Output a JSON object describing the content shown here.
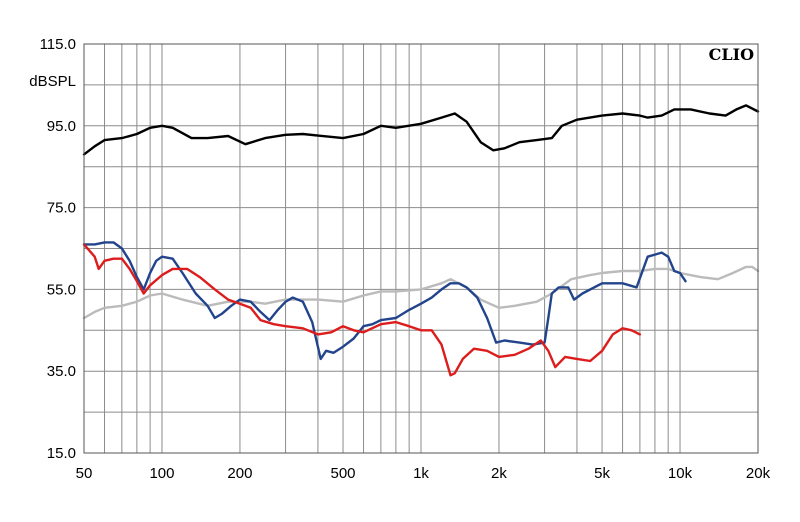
{
  "chart_data": {
    "type": "line",
    "title": "",
    "brand": "CLIO",
    "xlabel": "",
    "ylabel": "dBSPL",
    "x_scale": "log",
    "xlim": [
      50,
      20000
    ],
    "ylim": [
      15,
      115
    ],
    "grid": true,
    "x_ticks": [
      {
        "value": 50,
        "label": "50"
      },
      {
        "value": 100,
        "label": "100"
      },
      {
        "value": 200,
        "label": "200"
      },
      {
        "value": 500,
        "label": "500"
      },
      {
        "value": 1000,
        "label": "1k"
      },
      {
        "value": 2000,
        "label": "2k"
      },
      {
        "value": 5000,
        "label": "5k"
      },
      {
        "value": 10000,
        "label": "10k"
      },
      {
        "value": 20000,
        "label": "20k"
      }
    ],
    "y_ticks": [
      {
        "value": 115,
        "label": "115.0"
      },
      {
        "value": 95,
        "label": "95.0"
      },
      {
        "value": 75,
        "label": "75.0"
      },
      {
        "value": 55,
        "label": "55.0"
      },
      {
        "value": 35,
        "label": "35.0"
      },
      {
        "value": 15,
        "label": "15.0"
      }
    ],
    "series": [
      {
        "color": "#000000",
        "points": [
          [
            50,
            88
          ],
          [
            55,
            90
          ],
          [
            60,
            91.5
          ],
          [
            70,
            92
          ],
          [
            80,
            93
          ],
          [
            90,
            94.5
          ],
          [
            100,
            95
          ],
          [
            110,
            94.5
          ],
          [
            130,
            92
          ],
          [
            150,
            92
          ],
          [
            180,
            92.5
          ],
          [
            210,
            90.5
          ],
          [
            250,
            92
          ],
          [
            300,
            92.8
          ],
          [
            350,
            93
          ],
          [
            400,
            92.6
          ],
          [
            500,
            92
          ],
          [
            600,
            93
          ],
          [
            700,
            95
          ],
          [
            800,
            94.5
          ],
          [
            1000,
            95.5
          ],
          [
            1200,
            97
          ],
          [
            1350,
            98
          ],
          [
            1500,
            96
          ],
          [
            1700,
            91
          ],
          [
            1900,
            89
          ],
          [
            2100,
            89.5
          ],
          [
            2400,
            91
          ],
          [
            2800,
            91.5
          ],
          [
            3200,
            92
          ],
          [
            3500,
            95
          ],
          [
            4000,
            96.5
          ],
          [
            5000,
            97.5
          ],
          [
            6000,
            98
          ],
          [
            7000,
            97.5
          ],
          [
            7500,
            97
          ],
          [
            8500,
            97.5
          ],
          [
            9500,
            99
          ],
          [
            11000,
            99
          ],
          [
            13000,
            98
          ],
          [
            15000,
            97.5
          ],
          [
            16500,
            99
          ],
          [
            18000,
            100
          ],
          [
            20000,
            98.5
          ]
        ]
      },
      {
        "color": "#bbbbbb",
        "points": [
          [
            50,
            48
          ],
          [
            55,
            49.5
          ],
          [
            60,
            50.5
          ],
          [
            70,
            51
          ],
          [
            80,
            52
          ],
          [
            90,
            53.5
          ],
          [
            100,
            54
          ],
          [
            120,
            52.5
          ],
          [
            150,
            51
          ],
          [
            180,
            52
          ],
          [
            220,
            52
          ],
          [
            250,
            51.5
          ],
          [
            300,
            52.5
          ],
          [
            400,
            52.5
          ],
          [
            500,
            52
          ],
          [
            600,
            53.5
          ],
          [
            700,
            54.5
          ],
          [
            800,
            54.5
          ],
          [
            1000,
            55
          ],
          [
            1200,
            56.5
          ],
          [
            1300,
            57.5
          ],
          [
            1500,
            55.5
          ],
          [
            1700,
            52.5
          ],
          [
            2000,
            50.5
          ],
          [
            2300,
            51
          ],
          [
            2800,
            52
          ],
          [
            3200,
            54
          ],
          [
            3800,
            57.5
          ],
          [
            4500,
            58.5
          ],
          [
            5000,
            59
          ],
          [
            6000,
            59.5
          ],
          [
            7000,
            59.5
          ],
          [
            8000,
            60
          ],
          [
            9000,
            60
          ],
          [
            10000,
            59
          ],
          [
            12000,
            58
          ],
          [
            14000,
            57.5
          ],
          [
            16000,
            59
          ],
          [
            18000,
            60.5
          ],
          [
            19000,
            60.5
          ],
          [
            20000,
            59.5
          ]
        ]
      },
      {
        "color": "#22448c",
        "points": [
          [
            50,
            66
          ],
          [
            55,
            66
          ],
          [
            60,
            66.5
          ],
          [
            65,
            66.5
          ],
          [
            70,
            65
          ],
          [
            75,
            62
          ],
          [
            80,
            58
          ],
          [
            85,
            55
          ],
          [
            90,
            59
          ],
          [
            95,
            62
          ],
          [
            100,
            63
          ],
          [
            110,
            62.5
          ],
          [
            120,
            59
          ],
          [
            135,
            54
          ],
          [
            150,
            51
          ],
          [
            160,
            48
          ],
          [
            170,
            49
          ],
          [
            185,
            51
          ],
          [
            200,
            52.5
          ],
          [
            220,
            52
          ],
          [
            240,
            49.5
          ],
          [
            260,
            47.5
          ],
          [
            280,
            50
          ],
          [
            300,
            52
          ],
          [
            320,
            53
          ],
          [
            350,
            52
          ],
          [
            380,
            47
          ],
          [
            410,
            38
          ],
          [
            430,
            40
          ],
          [
            460,
            39.5
          ],
          [
            500,
            41
          ],
          [
            550,
            43
          ],
          [
            600,
            46
          ],
          [
            650,
            46.5
          ],
          [
            700,
            47.5
          ],
          [
            800,
            48
          ],
          [
            900,
            50
          ],
          [
            1000,
            51.5
          ],
          [
            1100,
            53
          ],
          [
            1200,
            55
          ],
          [
            1300,
            56.5
          ],
          [
            1400,
            56.5
          ],
          [
            1500,
            55.5
          ],
          [
            1650,
            53
          ],
          [
            1800,
            48
          ],
          [
            1950,
            42
          ],
          [
            2100,
            42.5
          ],
          [
            2400,
            42
          ],
          [
            2700,
            41.5
          ],
          [
            3000,
            42
          ],
          [
            3100,
            48
          ],
          [
            3200,
            54
          ],
          [
            3400,
            55.5
          ],
          [
            3700,
            55.5
          ],
          [
            3900,
            52.5
          ],
          [
            4200,
            54
          ],
          [
            5000,
            56.5
          ],
          [
            6000,
            56.5
          ],
          [
            6800,
            55.5
          ],
          [
            7500,
            63
          ],
          [
            8000,
            63.5
          ],
          [
            8500,
            64
          ],
          [
            9000,
            63
          ],
          [
            9500,
            59.5
          ],
          [
            10000,
            59
          ],
          [
            10500,
            57
          ]
        ]
      },
      {
        "color": "#dd1c1c",
        "points": [
          [
            50,
            66
          ],
          [
            55,
            63
          ],
          [
            57,
            60
          ],
          [
            60,
            62
          ],
          [
            65,
            62.5
          ],
          [
            70,
            62.5
          ],
          [
            75,
            60
          ],
          [
            80,
            57
          ],
          [
            85,
            54
          ],
          [
            90,
            56
          ],
          [
            100,
            58.5
          ],
          [
            110,
            60
          ],
          [
            125,
            60
          ],
          [
            140,
            58
          ],
          [
            160,
            55
          ],
          [
            180,
            52.5
          ],
          [
            200,
            51.5
          ],
          [
            220,
            50.5
          ],
          [
            240,
            47.5
          ],
          [
            270,
            46.5
          ],
          [
            300,
            46
          ],
          [
            350,
            45.5
          ],
          [
            400,
            44
          ],
          [
            450,
            44.5
          ],
          [
            500,
            46
          ],
          [
            550,
            45
          ],
          [
            600,
            44.5
          ],
          [
            700,
            46.5
          ],
          [
            800,
            47
          ],
          [
            900,
            46
          ],
          [
            1000,
            45
          ],
          [
            1100,
            45
          ],
          [
            1200,
            41.5
          ],
          [
            1300,
            34
          ],
          [
            1350,
            34.5
          ],
          [
            1450,
            38
          ],
          [
            1600,
            40.5
          ],
          [
            1800,
            40
          ],
          [
            2000,
            38.5
          ],
          [
            2300,
            39
          ],
          [
            2600,
            40.5
          ],
          [
            2900,
            42.5
          ],
          [
            3100,
            40
          ],
          [
            3300,
            36
          ],
          [
            3600,
            38.5
          ],
          [
            4000,
            38
          ],
          [
            4500,
            37.5
          ],
          [
            5000,
            40
          ],
          [
            5500,
            44
          ],
          [
            6000,
            45.5
          ],
          [
            6500,
            45
          ],
          [
            7000,
            44
          ]
        ]
      }
    ]
  }
}
